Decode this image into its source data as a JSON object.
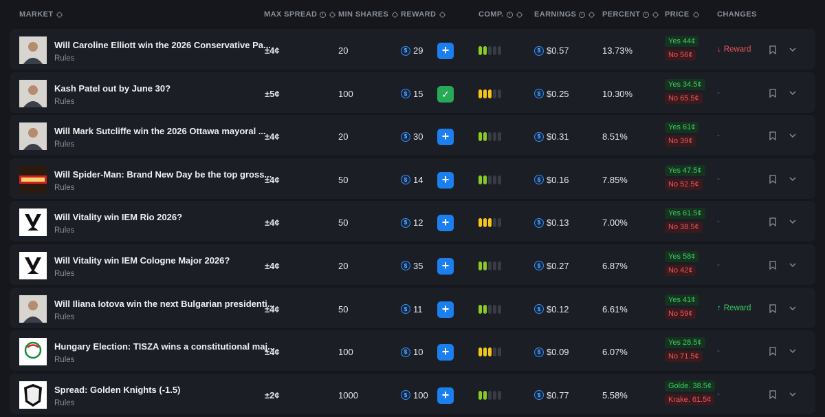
{
  "header": {
    "market": "MARKET",
    "max_spread": "MAX SPREAD",
    "min_shares": "MIN SHARES",
    "reward": "REWARD",
    "comp": "COMP.",
    "earnings": "EARNINGS",
    "percent": "PERCENT",
    "price": "PRICE",
    "changes": "CHANGES"
  },
  "colors": {
    "background": "#15171c",
    "row": "#1b1e24",
    "accent_blue": "#1b7ff0",
    "green": "#3dcc64",
    "red": "#f0545b",
    "yellow": "#f5c518",
    "comp_green": "#8ac926"
  },
  "rows": [
    {
      "title": "Will Caroline Elliott win the 2026 Conservative Pa...",
      "rules": "Rules",
      "spread": "±4¢",
      "min_shares": "20",
      "reward": "29",
      "added": false,
      "comp_level": 2,
      "comp_color": "green",
      "earnings": "$0.57",
      "percent": "13.73%",
      "yes": "Yes 44¢",
      "no": "No 56¢",
      "change": "Reward",
      "change_dir": "down",
      "thumb": "person"
    },
    {
      "title": "Kash Patel out by June 30?",
      "rules": "Rules",
      "spread": "±5¢",
      "min_shares": "100",
      "reward": "15",
      "added": true,
      "comp_level": 3,
      "comp_color": "yellow",
      "earnings": "$0.25",
      "percent": "10.30%",
      "yes": "Yes 34.5¢",
      "no": "No 65.5¢",
      "change": "-",
      "change_dir": "none",
      "thumb": "person"
    },
    {
      "title": "Will Mark Sutcliffe win the 2026 Ottawa mayoral ...",
      "rules": "Rules",
      "spread": "±4¢",
      "min_shares": "20",
      "reward": "30",
      "added": false,
      "comp_level": 2,
      "comp_color": "green",
      "earnings": "$0.31",
      "percent": "8.51%",
      "yes": "Yes 61¢",
      "no": "No 39¢",
      "change": "-",
      "change_dir": "none",
      "thumb": "person"
    },
    {
      "title": "Will Spider-Man: Brand New Day be the top gross...",
      "rules": "Rules",
      "spread": "±4¢",
      "min_shares": "50",
      "reward": "14",
      "added": false,
      "comp_level": 2,
      "comp_color": "green",
      "earnings": "$0.16",
      "percent": "7.85%",
      "yes": "Yes 47.5¢",
      "no": "No 52.5¢",
      "change": "-",
      "change_dir": "none",
      "thumb": "boxoffice"
    },
    {
      "title": "Will Vitality win IEM Rio 2026?",
      "rules": "Rules",
      "spread": "±4¢",
      "min_shares": "50",
      "reward": "12",
      "added": false,
      "comp_level": 3,
      "comp_color": "yellow",
      "earnings": "$0.13",
      "percent": "7.00%",
      "yes": "Yes 61.5¢",
      "no": "No 38.5¢",
      "change": "-",
      "change_dir": "none",
      "thumb": "vitality"
    },
    {
      "title": "Will Vitality win IEM Cologne Major 2026?",
      "rules": "Rules",
      "spread": "±4¢",
      "min_shares": "20",
      "reward": "35",
      "added": false,
      "comp_level": 2,
      "comp_color": "green",
      "earnings": "$0.27",
      "percent": "6.87%",
      "yes": "Yes 58¢",
      "no": "No 42¢",
      "change": "-",
      "change_dir": "none",
      "thumb": "vitality"
    },
    {
      "title": "Will Iliana Iotova win the next Bulgarian presidenti...",
      "rules": "Rules",
      "spread": "±4¢",
      "min_shares": "50",
      "reward": "11",
      "added": false,
      "comp_level": 2,
      "comp_color": "green",
      "earnings": "$0.12",
      "percent": "6.61%",
      "yes": "Yes 41¢",
      "no": "No 59¢",
      "change": "Reward",
      "change_dir": "up",
      "thumb": "person"
    },
    {
      "title": "Hungary Election: TISZA wins a constitutional maj...",
      "rules": "Rules",
      "spread": "±4¢",
      "min_shares": "100",
      "reward": "10",
      "added": false,
      "comp_level": 3,
      "comp_color": "yellow",
      "earnings": "$0.09",
      "percent": "6.07%",
      "yes": "Yes 28.5¢",
      "no": "No 71.5¢",
      "change": "-",
      "change_dir": "none",
      "thumb": "tisza"
    },
    {
      "title": "Spread: Golden Knights (-1.5)",
      "rules": "Rules",
      "spread": "±2¢",
      "min_shares": "1000",
      "reward": "100",
      "added": false,
      "comp_level": 2,
      "comp_color": "green",
      "earnings": "$0.77",
      "percent": "5.58%",
      "yes": "Golde. 38.5¢",
      "no": "Krake. 61.5¢",
      "change": "-",
      "change_dir": "none",
      "thumb": "nhl"
    }
  ]
}
